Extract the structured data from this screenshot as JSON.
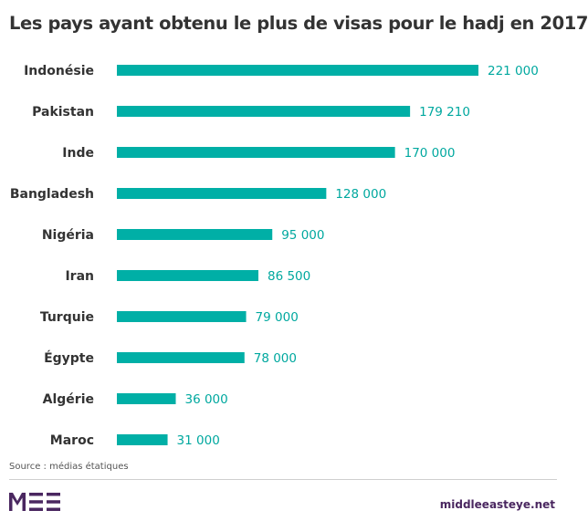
{
  "title": "Les pays ayant obtenu le plus de visas pour le hadj en 2017",
  "source": "Source : médias étatiques",
  "brand": {
    "logo": "MEE",
    "site": "middleeasteye.net",
    "logo_color": "#4a2760"
  },
  "colors": {
    "bar": "#00afa6",
    "value": "#00a89f",
    "label": "#333333"
  },
  "chart_data": {
    "type": "bar",
    "orientation": "horizontal",
    "categories": [
      "Indonésie",
      "Pakistan",
      "Inde",
      "Bangladesh",
      "Nigéria",
      "Iran",
      "Turquie",
      "Égypte",
      "Algérie",
      "Maroc"
    ],
    "values": [
      221000,
      179210,
      170000,
      128000,
      95000,
      86500,
      79000,
      78000,
      36000,
      31000
    ],
    "value_labels": [
      "221 000",
      "179 210",
      "170 000",
      "128 000",
      "95 000",
      "86 500",
      "79 000",
      "78 000",
      "36 000",
      "31 000"
    ],
    "title": "Les pays ayant obtenu le plus de visas pour le hadj en 2017",
    "xlabel": "",
    "ylabel": "",
    "xlim": [
      0,
      221000
    ],
    "grid": false,
    "legend": "none"
  }
}
